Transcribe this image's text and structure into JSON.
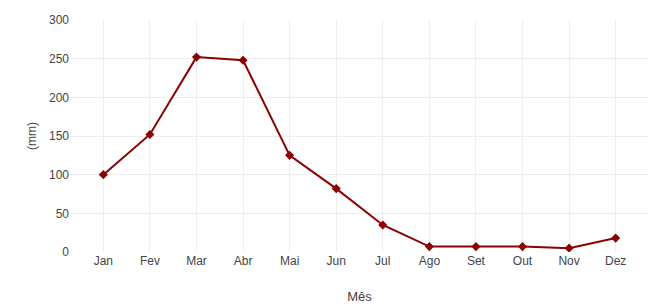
{
  "chart_data": {
    "type": "line",
    "xlabel": "Mês",
    "ylabel": "(mm)",
    "categories": [
      "Jan",
      "Fev",
      "Mar",
      "Abr",
      "Mai",
      "Jun",
      "Jul",
      "Ago",
      "Set",
      "Out",
      "Nov",
      "Dez"
    ],
    "values": [
      100,
      152,
      252,
      248,
      125,
      82,
      35,
      7,
      7,
      7,
      5,
      18
    ],
    "color": "#8B0000",
    "marker": "diamond",
    "ylim": [
      0,
      300
    ],
    "yticks": [
      0,
      50,
      100,
      150,
      200,
      250,
      300
    ],
    "grid": true
  }
}
